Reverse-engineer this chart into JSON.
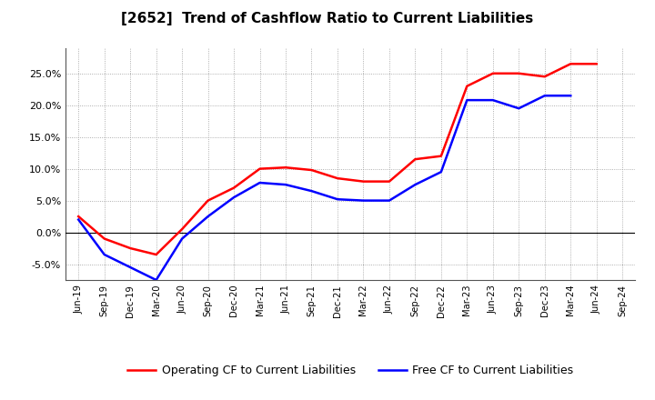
{
  "title": "[2652]  Trend of Cashflow Ratio to Current Liabilities",
  "x_labels": [
    "Jun-19",
    "Sep-19",
    "Dec-19",
    "Mar-20",
    "Jun-20",
    "Sep-20",
    "Dec-20",
    "Mar-21",
    "Jun-21",
    "Sep-21",
    "Dec-21",
    "Mar-22",
    "Jun-22",
    "Sep-22",
    "Dec-22",
    "Mar-23",
    "Jun-23",
    "Sep-23",
    "Dec-23",
    "Mar-24",
    "Jun-24",
    "Sep-24"
  ],
  "operating_cf": [
    2.5,
    -1.0,
    -2.5,
    -3.5,
    0.5,
    5.0,
    7.0,
    10.0,
    10.2,
    9.8,
    8.5,
    8.0,
    8.0,
    11.5,
    12.0,
    23.0,
    25.0,
    25.0,
    24.5,
    26.5,
    26.5,
    null
  ],
  "free_cf": [
    2.0,
    -3.5,
    -5.5,
    -7.5,
    -1.0,
    2.5,
    5.5,
    7.8,
    7.5,
    6.5,
    5.2,
    5.0,
    5.0,
    7.5,
    9.5,
    20.8,
    20.8,
    19.5,
    21.5,
    21.5,
    null,
    null
  ],
  "operating_color": "#ff0000",
  "free_color": "#0000ff",
  "ylim": [
    -7.5,
    29.0
  ],
  "yticks": [
    -5.0,
    0.0,
    5.0,
    10.0,
    15.0,
    20.0,
    25.0
  ],
  "legend_labels": [
    "Operating CF to Current Liabilities",
    "Free CF to Current Liabilities"
  ],
  "grid_color": "#999999",
  "bg_color": "#ffffff"
}
